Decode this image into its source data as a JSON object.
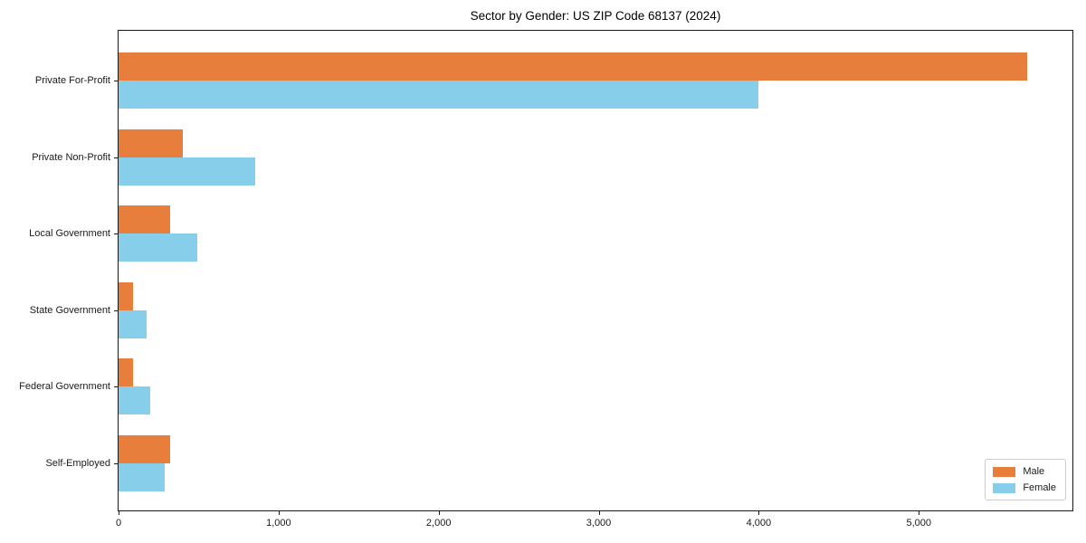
{
  "title": "Sector by Gender: US ZIP Code 68137 (2024)",
  "chart_data": {
    "type": "bar",
    "orientation": "horizontal",
    "title": "Sector by Gender: US ZIP Code 68137 (2024)",
    "xlabel": "",
    "ylabel": "",
    "categories": [
      "Private For-Profit",
      "Private Non-Profit",
      "Local Government",
      "State Government",
      "Federal Government",
      "Self-Employed"
    ],
    "series": [
      {
        "name": "Male",
        "color": "#E87E3C",
        "values": [
          5675,
          400,
          320,
          90,
          90,
          320
        ]
      },
      {
        "name": "Female",
        "color": "#87CEEB",
        "values": [
          4000,
          855,
          490,
          175,
          200,
          290
        ]
      }
    ],
    "xlim": [
      0,
      5960
    ],
    "xticks": [
      0,
      1000,
      2000,
      3000,
      4000,
      5000
    ],
    "xtick_labels": [
      "0",
      "1,000",
      "2,000",
      "3,000",
      "4,000",
      "5,000"
    ],
    "grid": false,
    "legend_position": "lower right"
  },
  "legend": {
    "items": [
      {
        "label": "Male",
        "color": "#E87E3C"
      },
      {
        "label": "Female",
        "color": "#87CEEB"
      }
    ]
  }
}
